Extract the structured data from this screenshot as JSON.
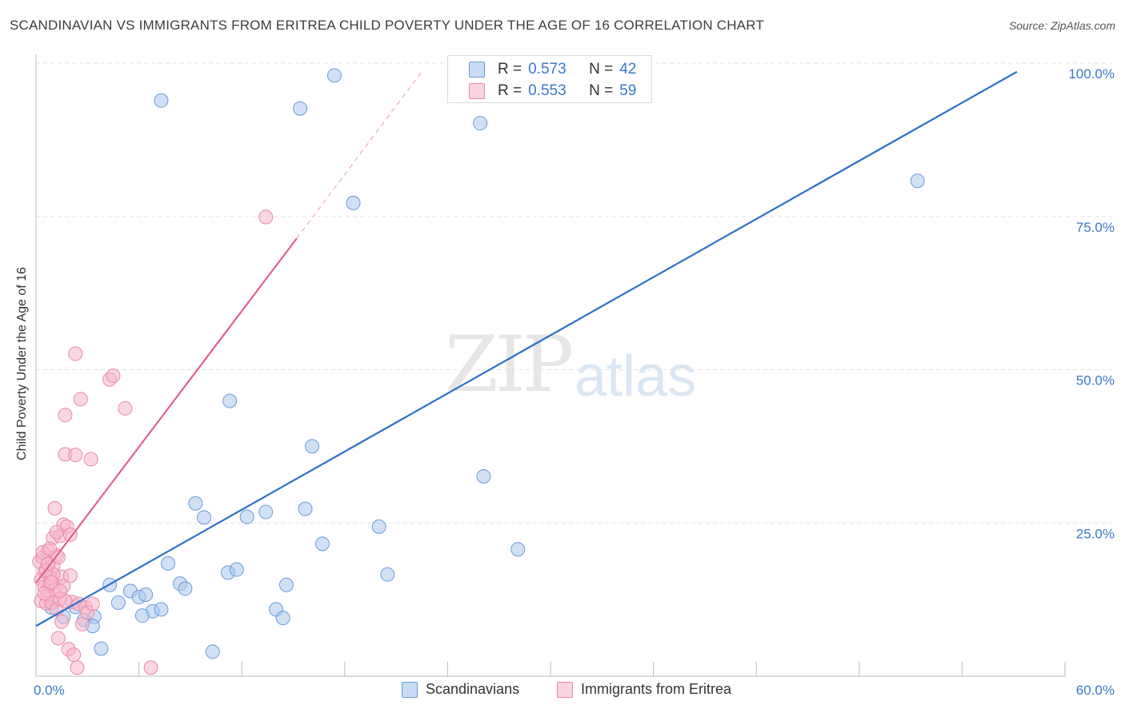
{
  "header": {
    "title": "SCANDINAVIAN VS IMMIGRANTS FROM ERITREA CHILD POVERTY UNDER THE AGE OF 16 CORRELATION CHART",
    "source": "Source: ZipAtlas.com"
  },
  "watermark": {
    "zip": "ZIP",
    "atlas": "atlas"
  },
  "colors": {
    "blue_fill": "#aac8ee",
    "blue_stroke": "#6a9bd8",
    "blue_line": "#2d70c8",
    "pink_fill": "#f7b6ca",
    "pink_stroke": "#e889a8",
    "pink_line": "#e2608c",
    "grid": "#e3e3e3",
    "tick_label": "#3a78c9"
  },
  "legend": {
    "rows": [
      {
        "r_label": "R =",
        "r_value": "0.573",
        "n_label": "N =",
        "n_value": "42"
      },
      {
        "r_label": "R =",
        "r_value": "0.553",
        "n_label": "N =",
        "n_value": "59"
      }
    ]
  },
  "chart_data": {
    "type": "scatter",
    "title": "SCANDINAVIAN VS IMMIGRANTS FROM ERITREA CHILD POVERTY UNDER THE AGE OF 16 CORRELATION CHART",
    "xlabel": "",
    "ylabel": "Child Poverty Under the Age of 16",
    "xlim": [
      0,
      60
    ],
    "ylim": [
      0,
      100
    ],
    "x_tick_labels": [
      "0.0%",
      "60.0%"
    ],
    "y_ticks": [
      25,
      50,
      75,
      100
    ],
    "y_tick_labels": [
      "25.0%",
      "50.0%",
      "75.0%",
      "100.0%"
    ],
    "legend_position": "top-center",
    "series": [
      {
        "name": "Scandinavians",
        "color": "#aac8ee",
        "r": 0.573,
        "n": 42,
        "trendline": {
          "x": [
            0,
            57.2
          ],
          "y": [
            8.2,
            98.6
          ]
        },
        "points": [
          [
            0.9,
            11.2
          ],
          [
            1.6,
            9.7
          ],
          [
            2.3,
            11.3
          ],
          [
            2.8,
            9.2
          ],
          [
            3.4,
            9.7
          ],
          [
            4.3,
            14.9
          ],
          [
            4.8,
            12.0
          ],
          [
            5.5,
            13.9
          ],
          [
            6.0,
            12.9
          ],
          [
            6.4,
            13.3
          ],
          [
            6.8,
            10.6
          ],
          [
            7.3,
            10.9
          ],
          [
            7.7,
            18.4
          ],
          [
            8.4,
            15.1
          ],
          [
            8.7,
            14.3
          ],
          [
            9.3,
            28.2
          ],
          [
            9.8,
            25.9
          ],
          [
            10.3,
            4.0
          ],
          [
            11.2,
            16.9
          ],
          [
            11.3,
            44.9
          ],
          [
            11.7,
            17.4
          ],
          [
            12.3,
            26.0
          ],
          [
            13.4,
            26.8
          ],
          [
            14.0,
            10.9
          ],
          [
            14.4,
            9.5
          ],
          [
            14.6,
            14.9
          ],
          [
            15.4,
            92.6
          ],
          [
            15.7,
            27.3
          ],
          [
            16.1,
            37.5
          ],
          [
            16.7,
            21.6
          ],
          [
            17.4,
            98.0
          ],
          [
            18.5,
            77.2
          ],
          [
            20.0,
            24.4
          ],
          [
            20.5,
            16.6
          ],
          [
            25.9,
            90.2
          ],
          [
            26.1,
            32.6
          ],
          [
            28.1,
            20.7
          ],
          [
            51.4,
            80.8
          ],
          [
            7.3,
            93.9
          ],
          [
            3.8,
            4.5
          ],
          [
            6.2,
            9.9
          ],
          [
            3.3,
            8.2
          ]
        ]
      },
      {
        "name": "Immigrants from Eritrea",
        "color": "#f7b6ca",
        "r": 0.553,
        "n": 59,
        "trendline": {
          "x": [
            0,
            15.2
          ],
          "y": [
            15.2,
            71.4
          ]
        },
        "trendline_dashed": {
          "x": [
            15.2,
            22.6
          ],
          "y": [
            71.4,
            99.0
          ]
        },
        "points": [
          [
            0.2,
            18.7
          ],
          [
            0.3,
            15.8
          ],
          [
            0.3,
            12.3
          ],
          [
            0.4,
            19.4
          ],
          [
            0.5,
            14.6
          ],
          [
            0.5,
            17.1
          ],
          [
            0.6,
            11.9
          ],
          [
            0.7,
            13.3
          ],
          [
            0.7,
            20.4
          ],
          [
            0.8,
            15.0
          ],
          [
            0.9,
            16.0
          ],
          [
            0.9,
            12.0
          ],
          [
            1.0,
            18.0
          ],
          [
            1.0,
            22.6
          ],
          [
            1.1,
            14.1
          ],
          [
            1.1,
            27.4
          ],
          [
            1.2,
            19.7
          ],
          [
            1.2,
            10.9
          ],
          [
            1.3,
            6.2
          ],
          [
            1.4,
            22.9
          ],
          [
            1.4,
            12.6
          ],
          [
            1.5,
            8.9
          ],
          [
            1.5,
            16.2
          ],
          [
            1.6,
            24.7
          ],
          [
            1.6,
            14.7
          ],
          [
            1.7,
            42.6
          ],
          [
            1.7,
            36.2
          ],
          [
            1.8,
            24.4
          ],
          [
            1.9,
            4.4
          ],
          [
            2.0,
            23.1
          ],
          [
            2.1,
            12.1
          ],
          [
            2.2,
            3.5
          ],
          [
            2.3,
            52.6
          ],
          [
            2.3,
            36.1
          ],
          [
            2.4,
            1.4
          ],
          [
            2.5,
            11.8
          ],
          [
            2.6,
            45.2
          ],
          [
            2.7,
            8.5
          ],
          [
            2.9,
            11.2
          ],
          [
            3.0,
            10.4
          ],
          [
            3.2,
            35.4
          ],
          [
            3.3,
            11.8
          ],
          [
            4.3,
            48.4
          ],
          [
            4.5,
            49.0
          ],
          [
            5.2,
            43.7
          ],
          [
            6.7,
            1.4
          ],
          [
            13.4,
            74.9
          ],
          [
            0.4,
            20.2
          ],
          [
            0.8,
            20.8
          ],
          [
            1.0,
            16.6
          ],
          [
            1.3,
            19.4
          ],
          [
            0.6,
            17.3
          ],
          [
            1.2,
            23.5
          ],
          [
            2.0,
            16.4
          ],
          [
            0.5,
            13.5
          ],
          [
            1.7,
            12.3
          ],
          [
            0.9,
            15.3
          ],
          [
            1.4,
            13.9
          ],
          [
            0.7,
            18.3
          ]
        ]
      }
    ]
  }
}
